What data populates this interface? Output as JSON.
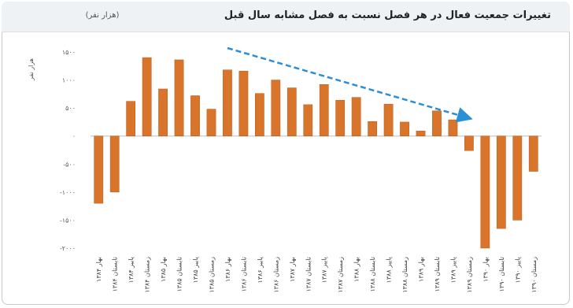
{
  "chart_data": {
    "type": "bar",
    "title": "تغییرات جمعیت فعال در هر فصل نسبت به فصل مشابه سال قبل",
    "unit_label": "(هزار نفر)",
    "ylabel": "هزار نفر",
    "ylim": [
      -2000,
      1500
    ],
    "yticks": [
      1500,
      1000,
      500,
      0,
      -500,
      -1000,
      -1500,
      -2000
    ],
    "ytick_labels": [
      "۱۵۰۰",
      "۱۰۰۰",
      "۵۰۰",
      "۰",
      "-۵۰۰",
      "-۱۰۰۰",
      "-۱۵۰۰",
      "-۲۰۰۰"
    ],
    "categories": [
      "بهار ۱۳۸۴",
      "تابستان ۱۳۸۴",
      "پاییز ۱۳۸۴",
      "زمستان ۱۳۸۴",
      "بهار ۱۳۸۵",
      "تابستان ۱۳۸۵",
      "پاییز ۱۳۸۵",
      "زمستان ۱۳۸۵",
      "بهار ۱۳۸۶",
      "تابستان ۱۳۸۶",
      "پاییز ۱۳۸۶",
      "زمستان ۱۳۸۶",
      "بهار ۱۳۸۷",
      "تابستان ۱۳۸۷",
      "پاییز ۱۳۸۷",
      "زمستان ۱۳۸۷",
      "بهار ۱۳۸۸",
      "تابستان ۱۳۸۸",
      "پاییز ۱۳۸۸",
      "زمستان ۱۳۸۸",
      "بهار ۱۳۸۹",
      "تابستان ۱۳۸۹",
      "پاییز ۱۳۸۹",
      "زمستان ۱۳۸۹",
      "بهار ۱۳۹۰",
      "تابستان ۱۳۹۰",
      "پاییز ۱۳۹۰",
      "زمستان ۱۳۹۰"
    ],
    "values": [
      -1200,
      -1000,
      620,
      1400,
      840,
      1360,
      720,
      480,
      1180,
      1160,
      760,
      1000,
      860,
      560,
      920,
      640,
      690,
      260,
      570,
      250,
      90,
      450,
      290,
      -260,
      -2000,
      -1650,
      -1500,
      -630
    ],
    "bar_color": "#d9742b",
    "trend_arrow": {
      "color": "#2b8fd6",
      "style": "dashed",
      "from_index": 8,
      "to_index": 23
    },
    "grid": false,
    "legend": "none"
  }
}
